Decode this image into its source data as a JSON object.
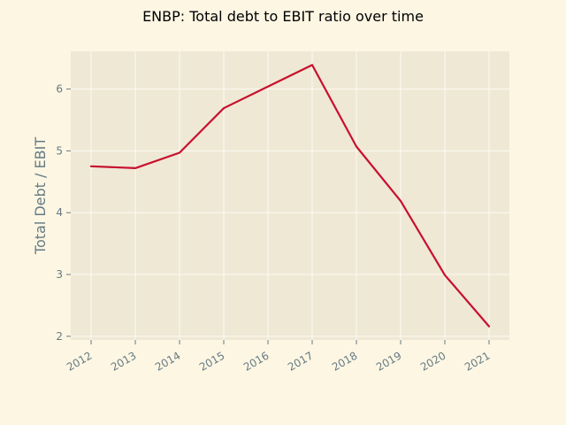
{
  "chart_data": {
    "type": "line",
    "title": "ENBP: Total debt to EBIT ratio over time",
    "xlabel": "",
    "ylabel": "Total Debt / EBIT",
    "categories": [
      "2012",
      "2013",
      "2014",
      "2015",
      "2016",
      "2017",
      "2018",
      "2019",
      "2020",
      "2021"
    ],
    "series": [
      {
        "name": "Total Debt / EBIT",
        "values": [
          4.75,
          4.72,
          4.97,
          5.69,
          6.04,
          6.39,
          5.07,
          4.19,
          2.99,
          2.16
        ],
        "color": "#c8102e"
      }
    ],
    "yticks": [
      2,
      3,
      4,
      5,
      6
    ],
    "ylim": [
      1.94,
      6.61
    ],
    "grid": true,
    "colors": {
      "figure_bg": "#fdf6e3",
      "axes_bg": "#eee8d5",
      "grid": "#fdfaf2",
      "tick_text": "#657b83",
      "title_text": "#000000"
    }
  }
}
